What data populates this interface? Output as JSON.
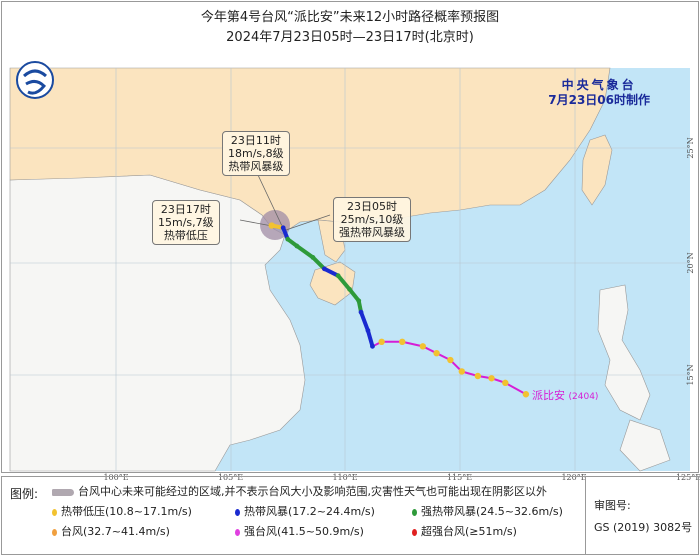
{
  "title": "今年第4号台风“派比安”未来12小时路径概率预报图",
  "subtitle": "2024年7月23日05时—23日17时(北京时)",
  "agency": {
    "name": "中央气象台",
    "issued": "7月23日06时制作"
  },
  "typhoon_label": "派比安",
  "typhoon_code": "(2404)",
  "axes": {
    "lon_ticks": [
      "100°E",
      "105°E",
      "110°E",
      "115°E",
      "120°E",
      "125°E"
    ],
    "lat_ticks": [
      "25°N",
      "20°N",
      "15°N"
    ]
  },
  "callouts": [
    {
      "time": "23日11时",
      "wind": "18m/s,8级",
      "level": "热带风暴级"
    },
    {
      "time": "23日17时",
      "wind": "15m/s,7级",
      "level": "热带低压"
    },
    {
      "time": "23日05时",
      "wind": "25m/s,10级",
      "level": "强热带风暴级"
    }
  ],
  "colors": {
    "land_china": "#fbe4bf",
    "land_other": "#f6f6f4",
    "ocean": "#c2e5f7",
    "track_line": "#d61ed6",
    "probability_area": "#a08ca6"
  },
  "track": [
    {
      "lon": 117.9,
      "lat": 14.2,
      "cat": "td"
    },
    {
      "lon": 117.0,
      "lat": 14.7,
      "cat": "td"
    },
    {
      "lon": 116.4,
      "lat": 14.9,
      "cat": "td"
    },
    {
      "lon": 115.8,
      "lat": 15.0,
      "cat": "td"
    },
    {
      "lon": 115.1,
      "lat": 15.2,
      "cat": "td"
    },
    {
      "lon": 114.6,
      "lat": 15.7,
      "cat": "td"
    },
    {
      "lon": 114.0,
      "lat": 16.0,
      "cat": "td"
    },
    {
      "lon": 113.4,
      "lat": 16.3,
      "cat": "td"
    },
    {
      "lon": 112.5,
      "lat": 16.5,
      "cat": "td"
    },
    {
      "lon": 111.6,
      "lat": 16.5,
      "cat": "td"
    },
    {
      "lon": 111.2,
      "lat": 16.3,
      "cat": "ts"
    },
    {
      "lon": 111.0,
      "lat": 17.0,
      "cat": "ts"
    },
    {
      "lon": 110.7,
      "lat": 17.8,
      "cat": "ts"
    },
    {
      "lon": 110.6,
      "lat": 18.3,
      "cat": "sts"
    },
    {
      "lon": 110.2,
      "lat": 18.8,
      "cat": "sts"
    },
    {
      "lon": 109.7,
      "lat": 19.4,
      "cat": "sts"
    },
    {
      "lon": 109.1,
      "lat": 19.7,
      "cat": "ts"
    },
    {
      "lon": 108.6,
      "lat": 20.2,
      "cat": "sts"
    },
    {
      "lon": 107.9,
      "lat": 20.7,
      "cat": "sts"
    },
    {
      "lon": 107.5,
      "lat": 21.0,
      "cat": "sts"
    },
    {
      "lon": 107.3,
      "lat": 21.5,
      "cat": "ts"
    },
    {
      "lon": 106.8,
      "lat": 21.6,
      "cat": "td"
    }
  ],
  "legend": {
    "heading": "图例:",
    "area_note": "台风中心未来可能经过的区域,并不表示台风大小及影响范围,灾害性天气也可能出现在阴影区以外",
    "items": [
      {
        "label": "热带低压(10.8~17.1m/s)",
        "color": "#f2c230"
      },
      {
        "label": "热带风暴(17.2~24.4m/s)",
        "color": "#1a2ad0"
      },
      {
        "label": "强热带风暴(24.5~32.6m/s)",
        "color": "#2e9a3a"
      },
      {
        "label": "台风(32.7~41.4m/s)",
        "color": "#f0a040"
      },
      {
        "label": "强台风(41.5~50.9m/s)",
        "color": "#e040e0"
      },
      {
        "label": "超强台风(≥51m/s)",
        "color": "#e02020"
      }
    ],
    "approval_label": "审图号:",
    "approval_number": "GS (2019) 3082号"
  }
}
